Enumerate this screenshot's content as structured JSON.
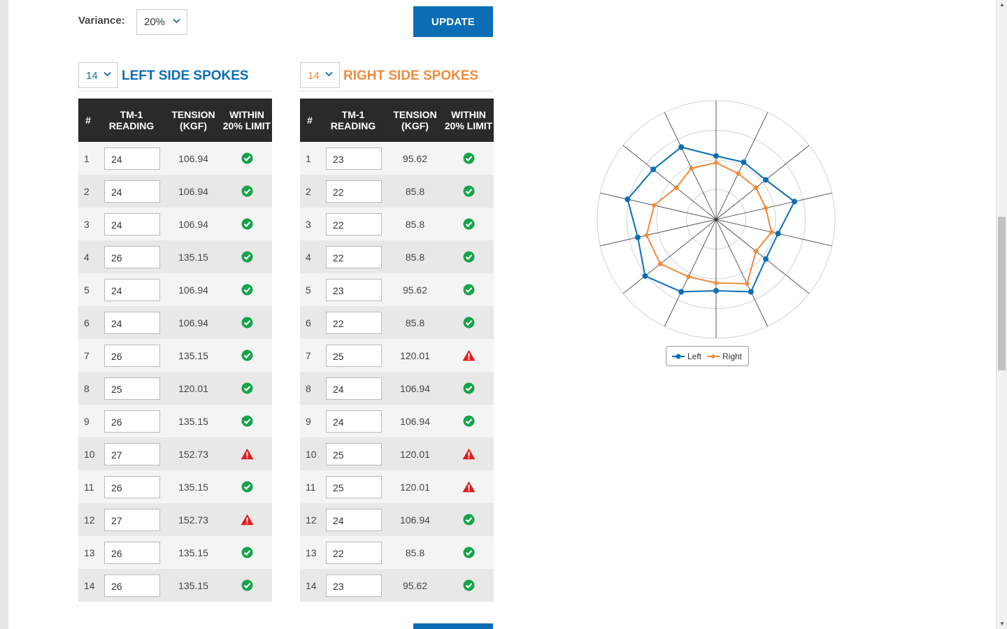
{
  "controls": {
    "variance_label": "Variance:",
    "variance_value": "20%",
    "update_label": "UPDATE"
  },
  "left": {
    "count": "14",
    "title": "LEFT SIDE SPOKES",
    "headers": {
      "num": "#",
      "reading": "TM-1 READING",
      "tension": "TENSION (KGF)",
      "limit": "WITHIN 20% LIMIT"
    },
    "rows": [
      {
        "n": "1",
        "reading": "24",
        "tension": "106.94",
        "ok": true
      },
      {
        "n": "2",
        "reading": "24",
        "tension": "106.94",
        "ok": true
      },
      {
        "n": "3",
        "reading": "24",
        "tension": "106.94",
        "ok": true
      },
      {
        "n": "4",
        "reading": "26",
        "tension": "135.15",
        "ok": true
      },
      {
        "n": "5",
        "reading": "24",
        "tension": "106.94",
        "ok": true
      },
      {
        "n": "6",
        "reading": "24",
        "tension": "106.94",
        "ok": true
      },
      {
        "n": "7",
        "reading": "26",
        "tension": "135.15",
        "ok": true
      },
      {
        "n": "8",
        "reading": "25",
        "tension": "120.01",
        "ok": true
      },
      {
        "n": "9",
        "reading": "26",
        "tension": "135.15",
        "ok": true
      },
      {
        "n": "10",
        "reading": "27",
        "tension": "152.73",
        "ok": false
      },
      {
        "n": "11",
        "reading": "26",
        "tension": "135.15",
        "ok": true
      },
      {
        "n": "12",
        "reading": "27",
        "tension": "152.73",
        "ok": false
      },
      {
        "n": "13",
        "reading": "26",
        "tension": "135.15",
        "ok": true
      },
      {
        "n": "14",
        "reading": "26",
        "tension": "135.15",
        "ok": true
      }
    ]
  },
  "right": {
    "count": "14",
    "title": "RIGHT SIDE SPOKES",
    "headers": {
      "num": "#",
      "reading": "TM-1 READING",
      "tension": "TENSION (KGF)",
      "limit": "WITHIN 20% LIMIT"
    },
    "rows": [
      {
        "n": "1",
        "reading": "23",
        "tension": "95.62",
        "ok": true
      },
      {
        "n": "2",
        "reading": "22",
        "tension": "85.8",
        "ok": true
      },
      {
        "n": "3",
        "reading": "22",
        "tension": "85.8",
        "ok": true
      },
      {
        "n": "4",
        "reading": "22",
        "tension": "85.8",
        "ok": true
      },
      {
        "n": "5",
        "reading": "23",
        "tension": "95.62",
        "ok": true
      },
      {
        "n": "6",
        "reading": "22",
        "tension": "85.8",
        "ok": true
      },
      {
        "n": "7",
        "reading": "25",
        "tension": "120.01",
        "ok": false
      },
      {
        "n": "8",
        "reading": "24",
        "tension": "106.94",
        "ok": true
      },
      {
        "n": "9",
        "reading": "24",
        "tension": "106.94",
        "ok": true
      },
      {
        "n": "10",
        "reading": "25",
        "tension": "120.01",
        "ok": false
      },
      {
        "n": "11",
        "reading": "25",
        "tension": "120.01",
        "ok": false
      },
      {
        "n": "12",
        "reading": "24",
        "tension": "106.94",
        "ok": true
      },
      {
        "n": "13",
        "reading": "22",
        "tension": "85.8",
        "ok": true
      },
      {
        "n": "14",
        "reading": "23",
        "tension": "95.62",
        "ok": true
      }
    ]
  },
  "colors": {
    "left": "#0b6db5",
    "right": "#f08a3c",
    "ok": "#16a34a",
    "warn": "#e11d1d",
    "header_bg": "#2a2a2a"
  },
  "chart_data": {
    "type": "radar",
    "spokes": 14,
    "rmax": 200,
    "rings": [
      50,
      100,
      150,
      200
    ],
    "series": [
      {
        "name": "Left",
        "values": [
          106.94,
          106.94,
          106.94,
          135.15,
          106.94,
          106.94,
          135.15,
          120.01,
          135.15,
          152.73,
          135.15,
          152.73,
          135.15,
          135.15
        ]
      },
      {
        "name": "Right",
        "values": [
          95.62,
          85.8,
          85.8,
          85.8,
          95.62,
          85.8,
          120.01,
          106.94,
          106.94,
          120.01,
          120.01,
          106.94,
          85.8,
          95.62
        ]
      }
    ],
    "legend": [
      "Left",
      "Right"
    ]
  }
}
